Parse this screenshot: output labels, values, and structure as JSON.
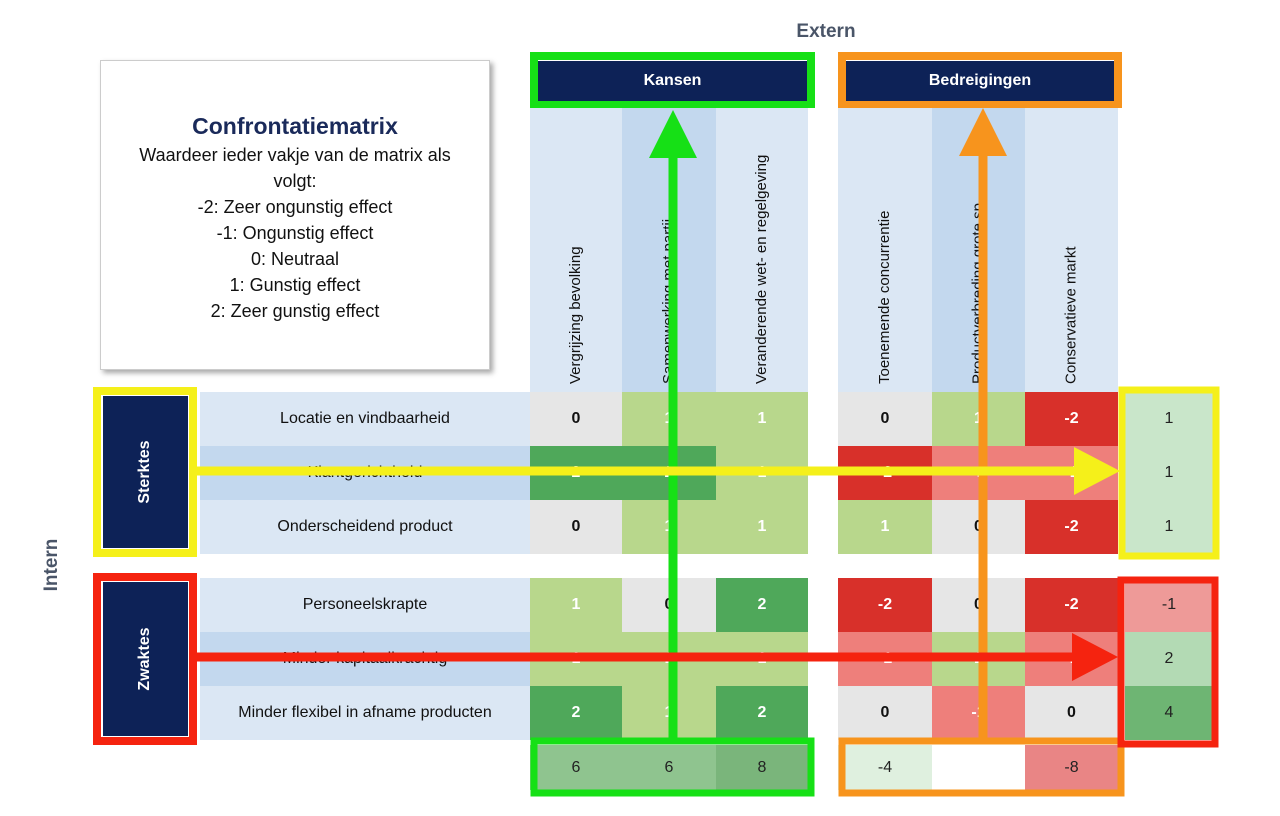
{
  "extern": "Extern",
  "intern": "Intern",
  "legend": {
    "title": "Confrontatiematrix",
    "lines": [
      "Waardeer ieder vakje van de matrix als volgt:",
      "-2:  Zeer ongunstig effect",
      "-1:  Ongunstig effect",
      "0: Neutraal",
      "1: Gunstig effect",
      "2:  Zeer gunstig effect"
    ]
  },
  "column_groups": [
    "Kansen",
    "Bedreigingen"
  ],
  "row_groups": [
    "Sterktes",
    "Zwaktes"
  ],
  "columns": [
    "Vergrijzing bevolking",
    "Samenwerking met partij",
    "Veranderende wet- en regelgeving",
    "Toenemende concurrentie",
    "Productverbreding grote sp",
    "Conservatieve markt"
  ],
  "rows": [
    {
      "label": "Locatie en vindbaarheid",
      "values": [
        0,
        1,
        1,
        0,
        1,
        -2
      ],
      "total": 1
    },
    {
      "label": "Klantgerichtheid",
      "values": [
        2,
        2,
        1,
        -2,
        -1,
        -1
      ],
      "total": 1
    },
    {
      "label": "Onderscheidend product",
      "values": [
        0,
        1,
        1,
        1,
        0,
        -2
      ],
      "total": 1
    },
    {
      "label": "Personeelskrapte",
      "values": [
        1,
        0,
        2,
        -2,
        0,
        -2
      ],
      "total": -1
    },
    {
      "label": "Minder kapitaalkrachtig",
      "values": [
        1,
        1,
        1,
        -1,
        1,
        -1
      ],
      "total": 2
    },
    {
      "label": "Minder flexibel in afname producten",
      "values": [
        2,
        1,
        2,
        0,
        -1,
        0
      ],
      "total": 4
    }
  ],
  "column_totals": [
    6,
    6,
    8,
    -4,
    null,
    -8
  ]
}
